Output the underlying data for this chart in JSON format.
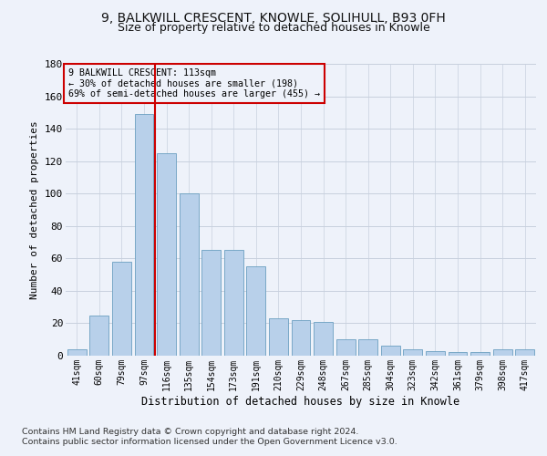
{
  "title1": "9, BALKWILL CRESCENT, KNOWLE, SOLIHULL, B93 0FH",
  "title2": "Size of property relative to detached houses in Knowle",
  "xlabel": "Distribution of detached houses by size in Knowle",
  "ylabel": "Number of detached properties",
  "annotation_line1": "9 BALKWILL CRESCENT: 113sqm",
  "annotation_line2": "← 30% of detached houses are smaller (198)",
  "annotation_line3": "69% of semi-detached houses are larger (455) →",
  "bar_labels": [
    "41sqm",
    "60sqm",
    "79sqm",
    "97sqm",
    "116sqm",
    "135sqm",
    "154sqm",
    "173sqm",
    "191sqm",
    "210sqm",
    "229sqm",
    "248sqm",
    "267sqm",
    "285sqm",
    "304sqm",
    "323sqm",
    "342sqm",
    "361sqm",
    "379sqm",
    "398sqm",
    "417sqm"
  ],
  "bar_values": [
    4,
    25,
    58,
    149,
    125,
    100,
    65,
    65,
    55,
    23,
    22,
    21,
    10,
    10,
    6,
    4,
    3,
    2,
    2,
    4,
    4
  ],
  "bar_color": "#b8d0ea",
  "bar_edge_color": "#6a9fc0",
  "vline_color": "#cc0000",
  "vline_x": 3.5,
  "annotation_box_color": "#cc0000",
  "background_color": "#eef2fa",
  "grid_color": "#c8d0de",
  "footnote1": "Contains HM Land Registry data © Crown copyright and database right 2024.",
  "footnote2": "Contains public sector information licensed under the Open Government Licence v3.0.",
  "ylim": [
    0,
    180
  ],
  "yticks": [
    0,
    20,
    40,
    60,
    80,
    100,
    120,
    140,
    160,
    180
  ]
}
